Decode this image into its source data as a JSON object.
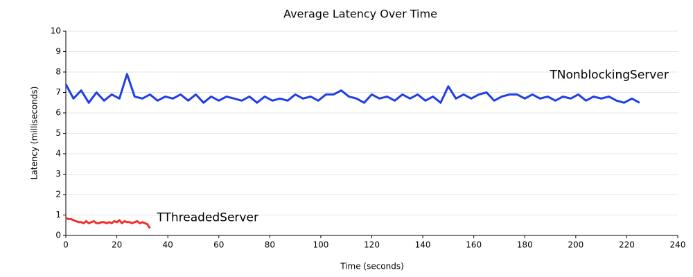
{
  "chart_data": {
    "type": "line",
    "title": "Average Latency Over Time",
    "x_label": "Time (seconds)",
    "y_label": "Latency (milliseconds)",
    "xlim": [
      0,
      240
    ],
    "xticks": [
      0,
      20,
      40,
      60,
      80,
      100,
      120,
      140,
      160,
      180,
      200,
      220,
      240
    ],
    "ylim": [
      0,
      10
    ],
    "yticks": [
      0,
      1,
      2,
      3,
      4,
      5,
      6,
      7,
      8,
      9,
      10
    ],
    "grid": true,
    "series": [
      {
        "name": "TNonblockingServer",
        "color": "#1f3fe6",
        "x": [
          0,
          3,
          6,
          9,
          12,
          15,
          18,
          21,
          24,
          27,
          30,
          33,
          36,
          39,
          42,
          45,
          48,
          51,
          54,
          57,
          60,
          63,
          66,
          69,
          72,
          75,
          78,
          81,
          84,
          87,
          90,
          93,
          96,
          99,
          102,
          105,
          108,
          111,
          114,
          117,
          120,
          123,
          126,
          129,
          132,
          135,
          138,
          141,
          144,
          147,
          150,
          153,
          156,
          159,
          162,
          165,
          168,
          171,
          174,
          177,
          180,
          183,
          186,
          189,
          192,
          195,
          198,
          201,
          204,
          207,
          210,
          213,
          216,
          219,
          222,
          225
        ],
        "values": [
          7.4,
          6.7,
          7.1,
          6.5,
          7.0,
          6.6,
          6.9,
          6.7,
          7.9,
          6.8,
          6.7,
          6.9,
          6.6,
          6.8,
          6.7,
          6.9,
          6.6,
          6.9,
          6.5,
          6.8,
          6.6,
          6.8,
          6.7,
          6.6,
          6.8,
          6.5,
          6.8,
          6.6,
          6.7,
          6.6,
          6.9,
          6.7,
          6.8,
          6.6,
          6.9,
          6.9,
          7.1,
          6.8,
          6.7,
          6.5,
          6.9,
          6.7,
          6.8,
          6.6,
          6.9,
          6.7,
          6.9,
          6.6,
          6.8,
          6.5,
          7.3,
          6.7,
          6.9,
          6.7,
          6.9,
          7.0,
          6.6,
          6.8,
          6.9,
          6.9,
          6.7,
          6.9,
          6.7,
          6.8,
          6.6,
          6.8,
          6.7,
          6.9,
          6.6,
          6.8,
          6.7,
          6.8,
          6.6,
          6.5,
          6.7,
          6.5
        ]
      },
      {
        "name": "TThreadedServer",
        "color": "#f0302a",
        "x": [
          0,
          1,
          2,
          3,
          4,
          5,
          6,
          7,
          8,
          9,
          10,
          11,
          12,
          13,
          14,
          15,
          16,
          17,
          18,
          19,
          20,
          21,
          22,
          23,
          24,
          25,
          26,
          27,
          28,
          29,
          30,
          31,
          32,
          33
        ],
        "values": [
          0.85,
          0.8,
          0.8,
          0.75,
          0.7,
          0.65,
          0.65,
          0.6,
          0.7,
          0.6,
          0.65,
          0.7,
          0.6,
          0.6,
          0.65,
          0.65,
          0.6,
          0.65,
          0.6,
          0.7,
          0.65,
          0.75,
          0.6,
          0.7,
          0.65,
          0.65,
          0.6,
          0.65,
          0.7,
          0.6,
          0.65,
          0.6,
          0.55,
          0.35
        ]
      }
    ]
  }
}
